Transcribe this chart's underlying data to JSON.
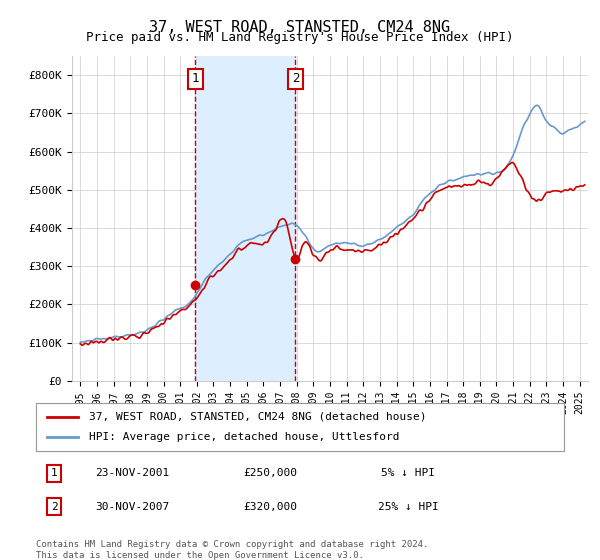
{
  "title": "37, WEST ROAD, STANSTED, CM24 8NG",
  "subtitle": "Price paid vs. HM Land Registry's House Price Index (HPI)",
  "ylim": [
    0,
    850000
  ],
  "yticks": [
    0,
    100000,
    200000,
    300000,
    400000,
    500000,
    600000,
    700000,
    800000
  ],
  "ytick_labels": [
    "£0",
    "£100K",
    "£200K",
    "£300K",
    "£400K",
    "£500K",
    "£600K",
    "£700K",
    "£800K"
  ],
  "hpi_color": "#6699cc",
  "price_color": "#cc0000",
  "vline_color": "#cc0000",
  "shade_color": "#ddeeff",
  "purchase1_date": 2001.9,
  "purchase1_price": 250000,
  "purchase1_label": "1",
  "purchase2_date": 2007.92,
  "purchase2_price": 320000,
  "purchase2_label": "2",
  "legend_line1": "37, WEST ROAD, STANSTED, CM24 8NG (detached house)",
  "legend_line2": "HPI: Average price, detached house, Uttlesford",
  "table_row1_num": "1",
  "table_row1_date": "23-NOV-2001",
  "table_row1_price": "£250,000",
  "table_row1_hpi": "5% ↓ HPI",
  "table_row2_num": "2",
  "table_row2_date": "30-NOV-2007",
  "table_row2_price": "£320,000",
  "table_row2_hpi": "25% ↓ HPI",
  "footnote": "Contains HM Land Registry data © Crown copyright and database right 2024.\nThis data is licensed under the Open Government Licence v3.0.",
  "background_color": "#ffffff",
  "plot_bg_color": "#ffffff",
  "grid_color": "#cccccc"
}
